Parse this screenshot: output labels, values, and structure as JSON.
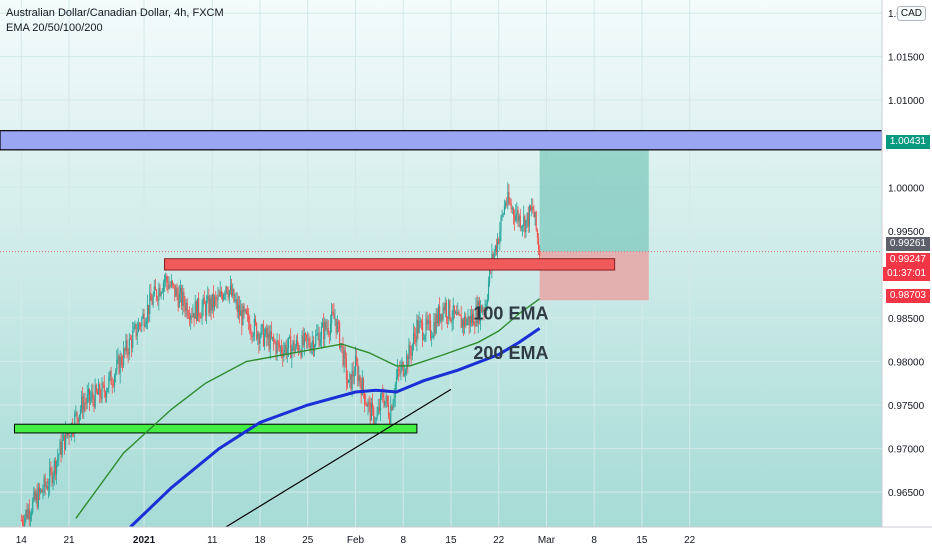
{
  "header": {
    "symbol_title": "Australian Dollar/Canadian Dollar, 4h, FXCM",
    "indicator": "EMA 20/50/100/200",
    "currency": "CAD"
  },
  "price_tags": {
    "target": "1.00431",
    "last": "0.99261",
    "last_sub": "0.99247",
    "countdown": "01:37:01",
    "stop": "0.98703"
  },
  "colors": {
    "bull": "#26a69a",
    "bear": "#ef5350",
    "ema100": "#2e8b2e",
    "ema200": "#1a2fd6",
    "blue_zone": "#9aa6f2",
    "green_zone": "#44ee44",
    "red_zone": "#f05a5a",
    "target_box": "#7fc9bd",
    "stop_box": "#e8a5a5",
    "tag_green": "#089981",
    "tag_red": "#f23645",
    "tag_dark": "#5d606b"
  },
  "chart_data": {
    "type": "candlestick",
    "title": "Australian Dollar/Canadian Dollar, 4h, FXCM",
    "ylim": [
      0.961,
      1.0215
    ],
    "y_ticks": [
      0.965,
      0.97,
      0.975,
      0.98,
      0.985,
      0.99,
      0.995,
      1.0,
      1.005,
      1.01,
      1.015,
      1.02
    ],
    "y_tick_labels": [
      "0.96500",
      "0.97000",
      "0.97500",
      "0.98000",
      "0.98500",
      "0.99000",
      "0.99500",
      "1.00000",
      "1.00500",
      "1.01000",
      "1.01500",
      "1.02000"
    ],
    "x_labels": [
      {
        "t": 0,
        "label": "14"
      },
      {
        "t": 7,
        "label": "21"
      },
      {
        "t": 18,
        "label": "2021"
      },
      {
        "t": 28,
        "label": "11"
      },
      {
        "t": 35,
        "label": "18"
      },
      {
        "t": 42,
        "label": "25"
      },
      {
        "t": 49,
        "label": "Feb"
      },
      {
        "t": 56,
        "label": "8"
      },
      {
        "t": 63,
        "label": "15"
      },
      {
        "t": 70,
        "label": "22"
      },
      {
        "t": 77,
        "label": "Mar"
      },
      {
        "t": 84,
        "label": "8"
      },
      {
        "t": 91,
        "label": "15"
      },
      {
        "t": 98,
        "label": "22"
      }
    ],
    "price_path": [
      {
        "t": 0,
        "p": 0.9618
      },
      {
        "t": 4,
        "p": 0.9662
      },
      {
        "t": 6,
        "p": 0.9705
      },
      {
        "t": 9,
        "p": 0.9752
      },
      {
        "t": 12,
        "p": 0.9765
      },
      {
        "t": 14,
        "p": 0.9792
      },
      {
        "t": 17,
        "p": 0.9838
      },
      {
        "t": 19,
        "p": 0.9868
      },
      {
        "t": 21,
        "p": 0.9895
      },
      {
        "t": 23,
        "p": 0.9875
      },
      {
        "t": 25,
        "p": 0.9858
      },
      {
        "t": 27,
        "p": 0.9862
      },
      {
        "t": 29,
        "p": 0.987
      },
      {
        "t": 30,
        "p": 0.989
      },
      {
        "t": 32,
        "p": 0.9855
      },
      {
        "t": 35,
        "p": 0.9832
      },
      {
        "t": 38,
        "p": 0.9815
      },
      {
        "t": 41,
        "p": 0.9818
      },
      {
        "t": 43,
        "p": 0.9825
      },
      {
        "t": 46,
        "p": 0.985
      },
      {
        "t": 47,
        "p": 0.9815
      },
      {
        "t": 48,
        "p": 0.977
      },
      {
        "t": 49,
        "p": 0.9795
      },
      {
        "t": 51,
        "p": 0.9745
      },
      {
        "t": 52,
        "p": 0.973
      },
      {
        "t": 53,
        "p": 0.9762
      },
      {
        "t": 54,
        "p": 0.9742
      },
      {
        "t": 55,
        "p": 0.978
      },
      {
        "t": 57,
        "p": 0.981
      },
      {
        "t": 58,
        "p": 0.984
      },
      {
        "t": 60,
        "p": 0.9835
      },
      {
        "t": 62,
        "p": 0.9865
      },
      {
        "t": 64,
        "p": 0.9845
      },
      {
        "t": 66,
        "p": 0.9848
      },
      {
        "t": 67,
        "p": 0.9858
      },
      {
        "t": 68,
        "p": 0.9865
      },
      {
        "t": 69,
        "p": 0.9915
      },
      {
        "t": 70,
        "p": 0.9945
      },
      {
        "t": 71,
        "p": 0.9985
      },
      {
        "t": 72,
        "p": 0.9975
      },
      {
        "t": 73,
        "p": 0.9965
      },
      {
        "t": 74,
        "p": 0.996
      },
      {
        "t": 75,
        "p": 0.9975
      },
      {
        "t": 76,
        "p": 0.9926
      }
    ],
    "ema100": [
      {
        "t": 8,
        "p": 0.962
      },
      {
        "t": 15,
        "p": 0.9695
      },
      {
        "t": 22,
        "p": 0.9745
      },
      {
        "t": 27,
        "p": 0.9775
      },
      {
        "t": 33,
        "p": 0.98
      },
      {
        "t": 40,
        "p": 0.981
      },
      {
        "t": 47,
        "p": 0.982
      },
      {
        "t": 51,
        "p": 0.981
      },
      {
        "t": 55,
        "p": 0.9795
      },
      {
        "t": 57,
        "p": 0.9795
      },
      {
        "t": 62,
        "p": 0.9808
      },
      {
        "t": 67,
        "p": 0.9822
      },
      {
        "t": 70,
        "p": 0.9835
      },
      {
        "t": 73,
        "p": 0.9855
      },
      {
        "t": 76,
        "p": 0.9872
      }
    ],
    "ema200": [
      {
        "t": 16,
        "p": 0.961
      },
      {
        "t": 22,
        "p": 0.9655
      },
      {
        "t": 29,
        "p": 0.97
      },
      {
        "t": 35,
        "p": 0.973
      },
      {
        "t": 42,
        "p": 0.975
      },
      {
        "t": 49,
        "p": 0.9765
      },
      {
        "t": 52,
        "p": 0.9767
      },
      {
        "t": 55,
        "p": 0.9765
      },
      {
        "t": 59,
        "p": 0.9778
      },
      {
        "t": 64,
        "p": 0.979
      },
      {
        "t": 70,
        "p": 0.9808
      },
      {
        "t": 73,
        "p": 0.9822
      },
      {
        "t": 76,
        "p": 0.9838
      }
    ],
    "resistance_zone": {
      "p_low": 1.0043,
      "p_high": 1.0065
    },
    "support_zone": {
      "t_start": -1,
      "t_end": 58,
      "p_low": 0.9718,
      "p_high": 0.9728
    },
    "supply_zone": {
      "t_start": 21,
      "t_end": 87,
      "p_low": 0.9905,
      "p_high": 0.9918
    },
    "trendline": {
      "t1": 30,
      "p1": 0.961,
      "t2": 63,
      "p2": 0.9768
    },
    "position": {
      "t_start": 76,
      "t_end": 92,
      "entry": 0.99261,
      "target": 1.00431,
      "stop": 0.98703
    },
    "current_price": 0.99261,
    "annotations": [
      {
        "label": "100 EMA",
        "t": 66,
        "p": 0.9848
      },
      {
        "label": "200 EMA",
        "t": 66,
        "p": 0.9803
      }
    ]
  }
}
